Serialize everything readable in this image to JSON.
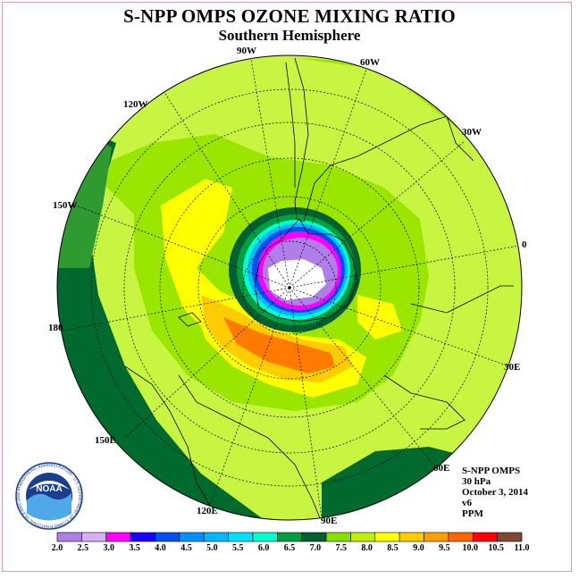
{
  "title": "S-NPP OMPS OZONE MIXING RATIO",
  "subtitle": "Southern Hemisphere",
  "longitude_labels": {
    "w90": "90W",
    "w60": "60W",
    "w120": "120W",
    "w30": "30W",
    "w150": "150W",
    "zero": "0",
    "d180": "180",
    "e30": "30E",
    "e150": "150E",
    "e60": "60E",
    "e120": "120E",
    "e90": "90E"
  },
  "info": {
    "instrument": "S-NPP OMPS",
    "level": "30 hPa",
    "date": "October 3, 2014",
    "version": "v6",
    "units": "PPM"
  },
  "logo": {
    "text": "NOAA",
    "ring_text": "NATIONAL OCEANIC AND ATMOSPHERIC ADMINISTRATION · U.S. DEPARTMENT OF COMMERCE"
  },
  "colorbar": {
    "ticks": [
      "2.0",
      "2.5",
      "3.0",
      "3.5",
      "4.0",
      "4.5",
      "5.0",
      "5.5",
      "6.0",
      "6.5",
      "7.0",
      "7.5",
      "8.0",
      "8.5",
      "9.0",
      "9.5",
      "10.0",
      "10.5",
      "11.0"
    ],
    "colors": [
      "#b07ee8",
      "#d8b0f5",
      "#ff00ff",
      "#1a00ff",
      "#0050f0",
      "#0090ff",
      "#00b8ff",
      "#00e0ff",
      "#00ffd0",
      "#00a040",
      "#006030",
      "#86e000",
      "#bff000",
      "#ffff00",
      "#ffcc00",
      "#ffa000",
      "#ff6600",
      "#ff0000",
      "#804830"
    ]
  },
  "map_colors": {
    "ocean_base": "#c8f542",
    "green_mid": "#9ae600",
    "dark_green": "#006a2e",
    "yellow": "#ffff00",
    "orange_light": "#ffcc00",
    "orange": "#ff7a00"
  }
}
